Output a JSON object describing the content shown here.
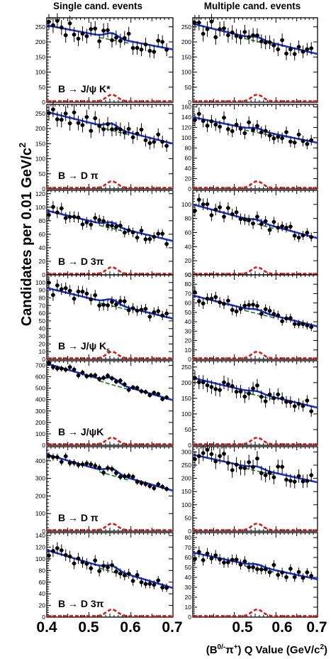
{
  "column_titles": [
    "Single cand. events",
    "Multiple cand. events"
  ],
  "ylabel": "Candidates per 0.01 GeV/c",
  "ylabel_sup": "2",
  "xlabel": "(B",
  "xlabel_sup": "0/-",
  "xlabel_mid": "π",
  "xlabel_sup2": "+",
  "xlabel_tail": ") Q Value (GeV/c",
  "xlabel_sup3": "2",
  "xlabel_end": ")",
  "x_tick_labels_left": [
    "0.4",
    "0.5",
    "0.6",
    "0.7"
  ],
  "x_tick_labels_right": [
    "0.5",
    "0.6",
    "0.7"
  ],
  "chart_data": [
    {
      "type": "scatter",
      "row": 0,
      "col": 0,
      "channel": "B → J/ψ K*",
      "xlim": [
        0.4,
        0.7
      ],
      "ylim": [
        0,
        280
      ],
      "yticks": [
        0,
        50,
        100,
        150,
        200,
        250
      ],
      "fit": [
        255,
        175
      ]
    },
    {
      "type": "scatter",
      "row": 0,
      "col": 1,
      "channel": "",
      "xlim": [
        0.4,
        0.7
      ],
      "ylim": [
        0,
        280
      ],
      "yticks": [
        0,
        50,
        100,
        150,
        200,
        250
      ],
      "fit": [
        260,
        160
      ]
    },
    {
      "type": "scatter",
      "row": 1,
      "col": 0,
      "channel": "B → D π",
      "xlim": [
        0.4,
        0.7
      ],
      "ylim": [
        0,
        280
      ],
      "yticks": [
        0,
        50,
        100,
        150,
        200,
        250
      ],
      "fit": [
        255,
        150
      ]
    },
    {
      "type": "scatter",
      "row": 1,
      "col": 1,
      "channel": "",
      "xlim": [
        0.4,
        0.7
      ],
      "ylim": [
        0,
        165
      ],
      "yticks": [
        0,
        20,
        40,
        60,
        80,
        100,
        120,
        140,
        160
      ],
      "fit": [
        140,
        90
      ]
    },
    {
      "type": "scatter",
      "row": 2,
      "col": 0,
      "channel": "B → D 3π",
      "xlim": [
        0.4,
        0.7
      ],
      "ylim": [
        0,
        125
      ],
      "yticks": [
        0,
        20,
        40,
        60,
        80,
        100,
        120
      ],
      "fit": [
        95,
        50
      ]
    },
    {
      "type": "scatter",
      "row": 2,
      "col": 1,
      "channel": "",
      "xlim": [
        0.4,
        0.7
      ],
      "ylim": [
        0,
        120
      ],
      "yticks": [
        0,
        20,
        40,
        60,
        80,
        100
      ],
      "fit": [
        100,
        52
      ]
    },
    {
      "type": "scatter",
      "row": 3,
      "col": 0,
      "channel": "B → J/ψ K",
      "channel_sub": "s",
      "xlim": [
        0.4,
        0.7
      ],
      "ylim": [
        0,
        110
      ],
      "yticks": [
        0,
        10,
        20,
        30,
        40,
        50,
        60,
        70,
        80,
        90,
        100
      ],
      "fit": [
        93,
        53
      ]
    },
    {
      "type": "scatter",
      "row": 3,
      "col": 1,
      "channel": "",
      "xlim": [
        0.4,
        0.7
      ],
      "ylim": [
        0,
        90
      ],
      "yticks": [
        0,
        10,
        20,
        30,
        40,
        50,
        60,
        70,
        80,
        90
      ],
      "fit": [
        68,
        35
      ]
    },
    {
      "type": "scatter",
      "row": 4,
      "col": 0,
      "channel": "B → J/ψK",
      "xlim": [
        0.4,
        0.7
      ],
      "ylim": [
        0,
        740
      ],
      "yticks": [
        0,
        100,
        200,
        300,
        400,
        500,
        600,
        700
      ],
      "fit": [
        715,
        395
      ]
    },
    {
      "type": "scatter",
      "row": 4,
      "col": 1,
      "channel": "",
      "xlim": [
        0.4,
        0.7
      ],
      "ylim": [
        0,
        270
      ],
      "yticks": [
        0,
        50,
        100,
        150,
        200,
        250
      ],
      "fit": [
        215,
        120
      ]
    },
    {
      "type": "scatter",
      "row": 5,
      "col": 0,
      "channel": "B → D π",
      "xlim": [
        0.4,
        0.7
      ],
      "ylim": [
        0,
        480
      ],
      "yticks": [
        0,
        100,
        200,
        300,
        400
      ],
      "fit": [
        435,
        230
      ]
    },
    {
      "type": "scatter",
      "row": 5,
      "col": 1,
      "channel": "",
      "xlim": [
        0.4,
        0.7
      ],
      "ylim": [
        0,
        320
      ],
      "yticks": [
        0,
        50,
        100,
        150,
        200,
        250,
        300
      ],
      "fit": [
        290,
        185
      ]
    },
    {
      "type": "scatter",
      "row": 6,
      "col": 0,
      "channel": "B → D 3π",
      "xlim": [
        0.4,
        0.7
      ],
      "ylim": [
        0,
        145
      ],
      "yticks": [
        0,
        20,
        40,
        60,
        80,
        100,
        120,
        140
      ],
      "fit": [
        115,
        50
      ]
    },
    {
      "type": "scatter",
      "row": 6,
      "col": 1,
      "channel": "",
      "xlim": [
        0.4,
        0.7
      ],
      "ylim": [
        0,
        85
      ],
      "yticks": [
        0,
        10,
        20,
        30,
        40,
        50,
        60,
        70,
        80
      ],
      "fit": [
        65,
        38
      ]
    }
  ]
}
